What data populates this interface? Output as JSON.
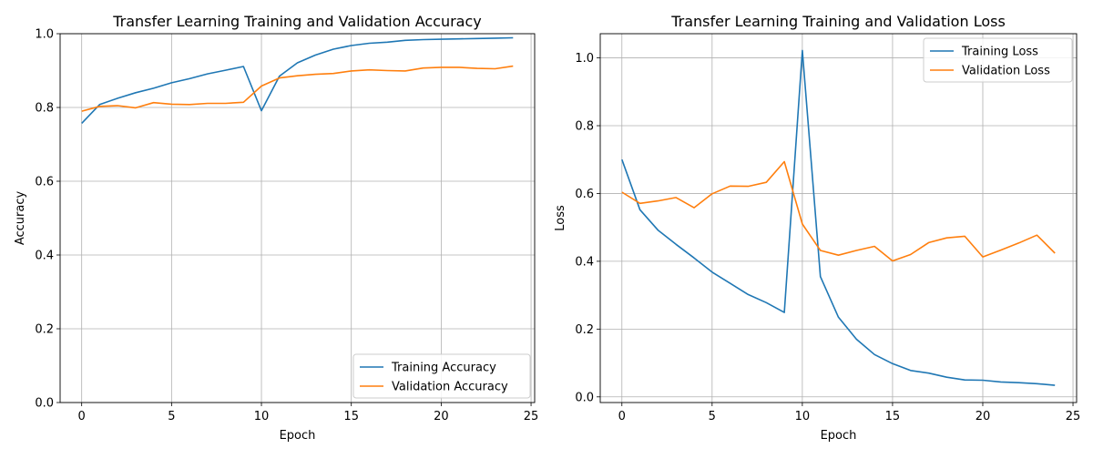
{
  "chart_data": [
    {
      "type": "line",
      "title": "Transfer Learning Training and Validation Accuracy",
      "xlabel": "Epoch",
      "ylabel": "Accuracy",
      "xlim": [
        -1.2,
        25.2
      ],
      "ylim": [
        0.0,
        1.0
      ],
      "xticks": [
        0,
        5,
        10,
        15,
        20,
        25
      ],
      "yticks": [
        0.0,
        0.2,
        0.4,
        0.6,
        0.8,
        1.0
      ],
      "xtick_labels": [
        "0",
        "5",
        "10",
        "15",
        "20",
        "25"
      ],
      "ytick_labels": [
        "0.0",
        "0.2",
        "0.4",
        "0.6",
        "0.8",
        "1.0"
      ],
      "grid": true,
      "legend_position": "lower-right",
      "x": [
        0,
        1,
        2,
        3,
        4,
        5,
        6,
        7,
        8,
        9,
        10,
        11,
        12,
        13,
        14,
        15,
        16,
        17,
        18,
        19,
        20,
        21,
        22,
        23,
        24
      ],
      "series": [
        {
          "name": "Training Accuracy",
          "color": "#1f77b4",
          "values": [
            0.757,
            0.808,
            0.825,
            0.84,
            0.852,
            0.867,
            0.878,
            0.891,
            0.901,
            0.911,
            0.791,
            0.885,
            0.921,
            0.942,
            0.958,
            0.968,
            0.974,
            0.977,
            0.982,
            0.984,
            0.985,
            0.986,
            0.987,
            0.988,
            0.989
          ]
        },
        {
          "name": "Validation Accuracy",
          "color": "#ff7f0e",
          "values": [
            0.79,
            0.803,
            0.805,
            0.799,
            0.813,
            0.809,
            0.808,
            0.811,
            0.811,
            0.814,
            0.858,
            0.88,
            0.886,
            0.89,
            0.892,
            0.899,
            0.902,
            0.9,
            0.899,
            0.907,
            0.909,
            0.909,
            0.906,
            0.905,
            0.912
          ]
        }
      ]
    },
    {
      "type": "line",
      "title": "Transfer Learning Training and Validation Loss",
      "xlabel": "Epoch",
      "ylabel": "Loss",
      "xlim": [
        -1.2,
        25.2
      ],
      "ylim": [
        -0.0167,
        1.0714
      ],
      "xticks": [
        0,
        5,
        10,
        15,
        20,
        25
      ],
      "yticks": [
        0.0,
        0.2,
        0.4,
        0.6,
        0.8,
        1.0
      ],
      "xtick_labels": [
        "0",
        "5",
        "10",
        "15",
        "20",
        "25"
      ],
      "ytick_labels": [
        "0.0",
        "0.2",
        "0.4",
        "0.6",
        "0.8",
        "1.0"
      ],
      "grid": true,
      "legend_position": "top-right",
      "x": [
        0,
        1,
        2,
        3,
        4,
        5,
        6,
        7,
        8,
        9,
        10,
        11,
        12,
        13,
        14,
        15,
        16,
        17,
        18,
        19,
        20,
        21,
        22,
        23,
        24
      ],
      "series": [
        {
          "name": "Training Loss",
          "color": "#1f77b4",
          "values": [
            0.7,
            0.552,
            0.492,
            0.45,
            0.41,
            0.368,
            0.335,
            0.302,
            0.278,
            0.249,
            1.022,
            0.355,
            0.235,
            0.17,
            0.125,
            0.098,
            0.078,
            0.07,
            0.058,
            0.05,
            0.049,
            0.044,
            0.042,
            0.039,
            0.034
          ]
        },
        {
          "name": "Validation Loss",
          "color": "#ff7f0e",
          "values": [
            0.604,
            0.571,
            0.578,
            0.588,
            0.558,
            0.599,
            0.622,
            0.621,
            0.633,
            0.694,
            0.51,
            0.432,
            0.418,
            0.432,
            0.444,
            0.401,
            0.42,
            0.455,
            0.469,
            0.474,
            0.413,
            0.433,
            0.454,
            0.477,
            0.424
          ]
        }
      ]
    }
  ]
}
